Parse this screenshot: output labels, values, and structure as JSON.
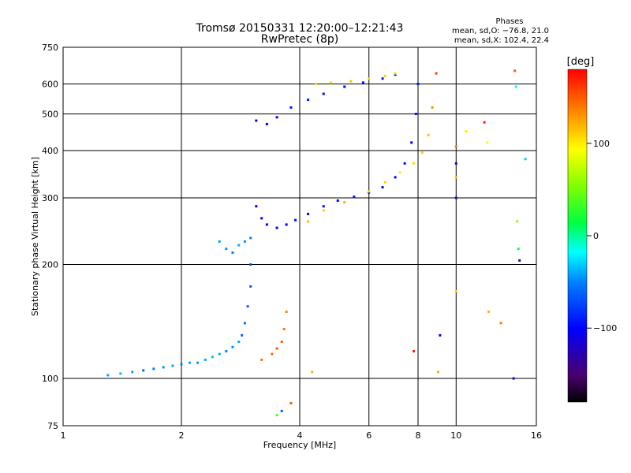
{
  "title": "Tromsø 20150331 12:20:00–12:21:43",
  "subtitle": "RwPretec (8p)",
  "phase_stats": {
    "heading": "Phases",
    "line_o": "mean, sd,O: −76.8, 21.0",
    "line_x": "mean, sd,X: 102.4, 22.4"
  },
  "colorbar": {
    "unit": "[deg]",
    "tick_labels": [
      "100",
      "0",
      "−100"
    ],
    "tick_values": [
      100,
      0,
      -100
    ],
    "range": [
      -180,
      180
    ]
  },
  "chart_data": {
    "type": "scatter",
    "title": "Tromsø 20150331 12:20:00–12:21:43",
    "subtitle": "RwPretec (8p)",
    "xlabel": "Frequency [MHz]",
    "ylabel": "Stationary phase Virtual Height [km]",
    "x_scale": "log",
    "y_scale": "log",
    "xlim": [
      1,
      16
    ],
    "ylim": [
      75,
      750
    ],
    "x_ticks": [
      1,
      2,
      4,
      6,
      8,
      10,
      16
    ],
    "x_tick_labels": [
      "1",
      "2",
      "4",
      "6",
      "8",
      "10",
      "16"
    ],
    "y_ticks": [
      75,
      100,
      200,
      300,
      400,
      500,
      600,
      750
    ],
    "y_tick_labels": [
      "75",
      "100",
      "200",
      "300",
      "400",
      "500",
      "600",
      "750"
    ],
    "grid": true,
    "color_encoding": "phase [deg]",
    "series": [
      {
        "points": [
          [
            1.3,
            102,
            -40
          ],
          [
            1.4,
            103,
            -35
          ],
          [
            1.5,
            104,
            -40
          ],
          [
            1.6,
            105,
            -60
          ],
          [
            1.7,
            106,
            -50
          ],
          [
            1.8,
            107,
            -45
          ],
          [
            1.9,
            108,
            -40
          ],
          [
            2.0,
            109,
            -50
          ],
          [
            2.1,
            110,
            -40
          ],
          [
            2.2,
            110,
            -45
          ],
          [
            2.3,
            112,
            -40
          ],
          [
            2.4,
            114,
            -35
          ],
          [
            2.5,
            116,
            -40
          ],
          [
            2.6,
            118,
            -50
          ],
          [
            2.7,
            121,
            -45
          ],
          [
            2.8,
            125,
            -40
          ],
          [
            2.85,
            130,
            -60
          ],
          [
            2.9,
            140,
            -55
          ],
          [
            2.95,
            155,
            -60
          ],
          [
            3.0,
            175,
            -65
          ],
          [
            3.0,
            200,
            -70
          ]
        ]
      },
      {
        "points": [
          [
            2.5,
            230,
            -40
          ],
          [
            2.6,
            220,
            -45
          ],
          [
            2.7,
            215,
            -50
          ],
          [
            2.8,
            225,
            -40
          ],
          [
            2.9,
            230,
            -45
          ],
          [
            3.0,
            235,
            -50
          ]
        ]
      },
      {
        "points": [
          [
            3.1,
            285,
            -100
          ],
          [
            3.2,
            265,
            -105
          ],
          [
            3.3,
            255,
            -110
          ],
          [
            3.5,
            250,
            -105
          ],
          [
            3.7,
            255,
            -100
          ],
          [
            3.9,
            262,
            -95
          ],
          [
            4.2,
            272,
            -100
          ],
          [
            4.6,
            285,
            -95
          ],
          [
            5.0,
            295,
            -100
          ],
          [
            5.5,
            302,
            -95
          ],
          [
            6.0,
            310,
            -100
          ],
          [
            6.5,
            320,
            -95
          ],
          [
            7.0,
            340,
            -100
          ],
          [
            7.4,
            370,
            -95
          ],
          [
            7.7,
            420,
            -100
          ],
          [
            7.9,
            500,
            -95
          ],
          [
            8.0,
            600,
            -90
          ]
        ]
      },
      {
        "points": [
          [
            4.2,
            260,
            115
          ],
          [
            4.6,
            278,
            110
          ],
          [
            5.2,
            292,
            120
          ],
          [
            6.0,
            312,
            105
          ],
          [
            6.6,
            330,
            110
          ],
          [
            7.2,
            350,
            100
          ],
          [
            7.8,
            370,
            105
          ],
          [
            8.2,
            395,
            110
          ],
          [
            8.5,
            440,
            115
          ],
          [
            8.7,
            520,
            130
          ],
          [
            8.9,
            640,
            160
          ]
        ]
      },
      {
        "points": [
          [
            3.1,
            480,
            -110
          ],
          [
            3.3,
            470,
            -105
          ],
          [
            3.5,
            490,
            -100
          ],
          [
            3.8,
            520,
            -95
          ],
          [
            4.2,
            545,
            -90
          ],
          [
            4.6,
            565,
            -95
          ],
          [
            5.2,
            590,
            -100
          ],
          [
            5.8,
            605,
            -95
          ],
          [
            6.5,
            620,
            -90
          ],
          [
            7.0,
            635,
            -95
          ]
        ]
      },
      {
        "points": [
          [
            4.4,
            600,
            110
          ],
          [
            4.8,
            605,
            105
          ],
          [
            5.4,
            610,
            115
          ],
          [
            6.0,
            620,
            110
          ],
          [
            6.6,
            630,
            110
          ],
          [
            7.0,
            640,
            105
          ]
        ]
      },
      {
        "points": [
          [
            3.2,
            112,
            140
          ],
          [
            3.4,
            116,
            145
          ],
          [
            3.5,
            120,
            150
          ],
          [
            3.6,
            125,
            145
          ],
          [
            3.65,
            135,
            140
          ],
          [
            3.7,
            150,
            135
          ]
        ]
      },
      {
        "points": [
          [
            3.5,
            80,
            40
          ],
          [
            3.6,
            82,
            -60
          ],
          [
            3.8,
            86,
            150
          ],
          [
            4.3,
            104,
            120
          ],
          [
            7.8,
            118,
            170
          ],
          [
            9.0,
            104,
            120
          ],
          [
            9.1,
            130,
            -110
          ],
          [
            10.0,
            170,
            110
          ],
          [
            10.0,
            300,
            -120
          ],
          [
            10.0,
            370,
            -110
          ],
          [
            10.0,
            410,
            140
          ],
          [
            10.0,
            340,
            115
          ],
          [
            10.6,
            450,
            100
          ],
          [
            11.8,
            475,
            170
          ],
          [
            12.0,
            420,
            95
          ],
          [
            12.1,
            150,
            120
          ],
          [
            13.0,
            140,
            140
          ],
          [
            14.0,
            100,
            -130
          ],
          [
            14.1,
            650,
            150
          ],
          [
            14.2,
            590,
            -20
          ],
          [
            14.3,
            260,
            60
          ],
          [
            14.4,
            220,
            20
          ],
          [
            14.5,
            205,
            -130
          ],
          [
            15.0,
            380,
            -30
          ]
        ]
      }
    ]
  }
}
